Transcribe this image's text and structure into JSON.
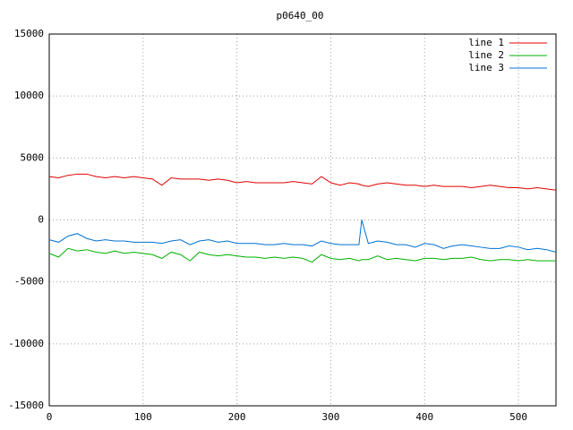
{
  "chart_data": {
    "type": "line",
    "title": "p0640_00",
    "x": [
      0,
      10,
      20,
      30,
      40,
      50,
      60,
      70,
      80,
      90,
      100,
      110,
      120,
      130,
      140,
      150,
      160,
      170,
      180,
      190,
      200,
      210,
      220,
      230,
      240,
      250,
      260,
      270,
      280,
      290,
      300,
      310,
      320,
      330,
      333,
      340,
      350,
      360,
      370,
      380,
      390,
      400,
      410,
      420,
      430,
      440,
      450,
      460,
      470,
      480,
      490,
      500,
      510,
      520,
      530,
      540
    ],
    "series": [
      {
        "name": "line 1",
        "color": "#e00000",
        "values": [
          3500,
          3400,
          3600,
          3700,
          3700,
          3500,
          3400,
          3500,
          3400,
          3500,
          3400,
          3300,
          2800,
          3400,
          3300,
          3300,
          3300,
          3200,
          3300,
          3200,
          3000,
          3100,
          3000,
          3000,
          3000,
          3000,
          3100,
          3000,
          2900,
          3500,
          3000,
          2800,
          3000,
          2900,
          2800,
          2700,
          2900,
          3000,
          2900,
          2800,
          2800,
          2700,
          2800,
          2700,
          2700,
          2700,
          2600,
          2700,
          2800,
          2700,
          2600,
          2600,
          2500,
          2600,
          2500,
          2400
        ]
      },
      {
        "name": "line 2",
        "color": "#00b000",
        "values": [
          -2700,
          -3000,
          -2300,
          -2500,
          -2400,
          -2600,
          -2700,
          -2500,
          -2700,
          -2600,
          -2700,
          -2800,
          -3100,
          -2600,
          -2800,
          -3300,
          -2600,
          -2800,
          -2900,
          -2800,
          -2900,
          -3000,
          -3000,
          -3100,
          -3000,
          -3100,
          -3000,
          -3100,
          -3400,
          -2800,
          -3100,
          -3200,
          -3100,
          -3300,
          -3200,
          -3200,
          -2900,
          -3200,
          -3100,
          -3200,
          -3300,
          -3100,
          -3100,
          -3200,
          -3100,
          -3100,
          -3000,
          -3200,
          -3300,
          -3200,
          -3200,
          -3300,
          -3200,
          -3300,
          -3300,
          -3300
        ]
      },
      {
        "name": "line 3",
        "color": "#0070d0",
        "values": [
          -1600,
          -1800,
          -1300,
          -1100,
          -1500,
          -1700,
          -1600,
          -1700,
          -1700,
          -1800,
          -1800,
          -1800,
          -1900,
          -1700,
          -1600,
          -2000,
          -1700,
          -1600,
          -1800,
          -1700,
          -1900,
          -1900,
          -1900,
          -2000,
          -2000,
          -1900,
          -2000,
          -2000,
          -2100,
          -1700,
          -1900,
          -2000,
          -2000,
          -2000,
          0,
          -1900,
          -1700,
          -1800,
          -2000,
          -2000,
          -2200,
          -1900,
          -2000,
          -2300,
          -2100,
          -2000,
          -2100,
          -2200,
          -2300,
          -2300,
          -2100,
          -2200,
          -2400,
          -2300,
          -2400,
          -2600
        ]
      }
    ],
    "xlim": [
      0,
      540
    ],
    "xticks": [
      0,
      100,
      200,
      300,
      400,
      500
    ],
    "ylim": [
      -15000,
      15000
    ],
    "yticks": [
      -15000,
      -10000,
      -5000,
      0,
      5000,
      10000,
      15000
    ],
    "grid": true,
    "legend": "top-right"
  }
}
